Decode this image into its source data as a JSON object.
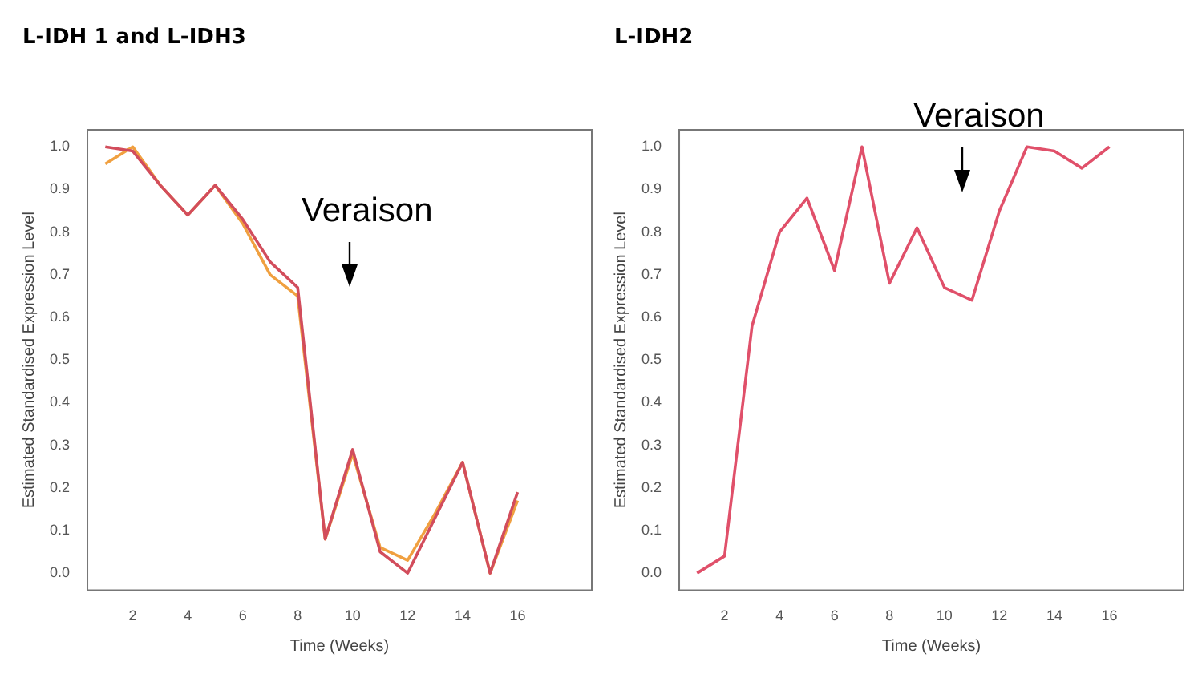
{
  "chart_data": [
    {
      "type": "line",
      "title": "L-IDH 1 and L-IDH3",
      "xlabel": "Time (Weeks)",
      "ylabel": "Estimated Standardised Expression Level",
      "x": [
        1,
        2,
        3,
        4,
        5,
        6,
        7,
        8,
        9,
        10,
        11,
        12,
        13,
        14,
        15,
        16
      ],
      "series": [
        {
          "color": "#d24d5c",
          "values": [
            1.0,
            0.99,
            0.91,
            0.84,
            0.91,
            0.83,
            0.73,
            0.67,
            0.08,
            0.29,
            0.05,
            0.0,
            0.13,
            0.26,
            0.0,
            0.19
          ]
        },
        {
          "color": "#f0a040",
          "values": [
            0.96,
            1.0,
            0.91,
            0.84,
            0.91,
            0.82,
            0.7,
            0.65,
            0.08,
            0.28,
            0.06,
            0.03,
            0.14,
            0.26,
            0.0,
            0.17
          ]
        }
      ],
      "xlim": [
        0.35,
        18.7
      ],
      "ylim": [
        -0.04,
        1.04
      ],
      "xticks": [
        2,
        4,
        6,
        8,
        10,
        12,
        14,
        16
      ],
      "yticks": [
        {
          "value": 0,
          "label": "0.0"
        },
        {
          "value": 0.1,
          "label": "0.1"
        },
        {
          "value": 0.2,
          "label": "0.2"
        },
        {
          "value": 0.3,
          "label": "0.3"
        },
        {
          "value": 0.4,
          "label": "0.4"
        },
        {
          "value": 0.5,
          "label": "0.5"
        },
        {
          "value": 0.6,
          "label": "0.6"
        },
        {
          "value": 0.7,
          "label": "0.7"
        },
        {
          "value": 0.8,
          "label": "0.8"
        },
        {
          "value": 0.9,
          "label": "0.9"
        },
        {
          "value": 1,
          "label": "1.0"
        }
      ],
      "annotations": [
        "Veraison"
      ]
    },
    {
      "type": "line",
      "title": "L-IDH2",
      "xlabel": "Time (Weeks)",
      "ylabel": "Estimated Standardised Expression Level",
      "x": [
        1,
        2,
        3,
        4,
        5,
        6,
        7,
        8,
        9,
        10,
        11,
        12,
        13,
        14,
        15,
        16
      ],
      "series": [
        {
          "color": "#e0506a",
          "values": [
            0.0,
            0.04,
            0.58,
            0.8,
            0.88,
            0.71,
            1.0,
            0.68,
            0.81,
            0.67,
            0.64,
            0.85,
            1.0,
            0.99,
            0.95,
            1.0
          ]
        }
      ],
      "xlim": [
        0.35,
        18.7
      ],
      "ylim": [
        -0.04,
        1.04
      ],
      "xticks": [
        2,
        4,
        6,
        8,
        10,
        12,
        14,
        16
      ],
      "yticks": [
        {
          "value": 0,
          "label": "0.0"
        },
        {
          "value": 0.1,
          "label": "0.1"
        },
        {
          "value": 0.2,
          "label": "0.2"
        },
        {
          "value": 0.3,
          "label": "0.3"
        },
        {
          "value": 0.4,
          "label": "0.4"
        },
        {
          "value": 0.5,
          "label": "0.5"
        },
        {
          "value": 0.6,
          "label": "0.6"
        },
        {
          "value": 0.7,
          "label": "0.7"
        },
        {
          "value": 0.8,
          "label": "0.8"
        },
        {
          "value": 0.9,
          "label": "0.9"
        },
        {
          "value": 1,
          "label": "1.0"
        }
      ],
      "annotations": [
        "Veraison"
      ]
    }
  ]
}
